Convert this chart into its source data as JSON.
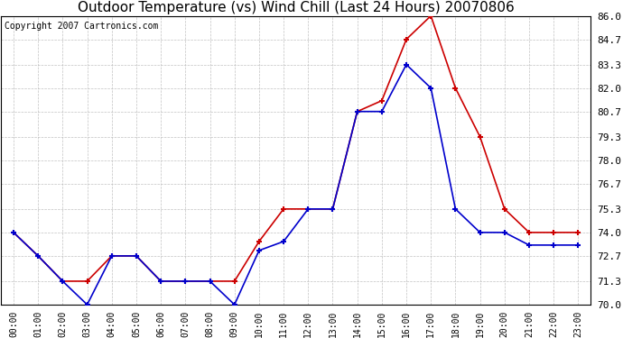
{
  "title": "Outdoor Temperature (vs) Wind Chill (Last 24 Hours) 20070806",
  "copyright": "Copyright 2007 Cartronics.com",
  "hours": [
    "00:00",
    "01:00",
    "02:00",
    "03:00",
    "04:00",
    "05:00",
    "06:00",
    "07:00",
    "08:00",
    "09:00",
    "10:00",
    "11:00",
    "12:00",
    "13:00",
    "14:00",
    "15:00",
    "16:00",
    "17:00",
    "18:00",
    "19:00",
    "20:00",
    "21:00",
    "22:00",
    "23:00"
  ],
  "outdoor_temp": [
    74.0,
    72.7,
    71.3,
    71.3,
    72.7,
    72.7,
    71.3,
    71.3,
    71.3,
    71.3,
    73.5,
    75.3,
    75.3,
    75.3,
    80.7,
    81.3,
    84.7,
    86.0,
    82.0,
    79.3,
    75.3,
    74.0,
    74.0,
    74.0
  ],
  "wind_chill": [
    74.0,
    72.7,
    71.3,
    70.0,
    72.7,
    72.7,
    71.3,
    71.3,
    71.3,
    70.0,
    73.0,
    73.5,
    75.3,
    75.3,
    80.7,
    80.7,
    83.3,
    82.0,
    75.3,
    74.0,
    74.0,
    73.3,
    73.3,
    73.3
  ],
  "ylim": [
    70.0,
    86.0
  ],
  "yticks": [
    70.0,
    71.3,
    72.7,
    74.0,
    75.3,
    76.7,
    78.0,
    79.3,
    80.7,
    82.0,
    83.3,
    84.7,
    86.0
  ],
  "temp_color": "#cc0000",
  "chill_color": "#0000cc",
  "background_color": "#ffffff",
  "grid_color": "#bbbbbb",
  "title_fontsize": 11,
  "copyright_fontsize": 7,
  "tick_fontsize": 7,
  "ytick_fontsize": 8
}
